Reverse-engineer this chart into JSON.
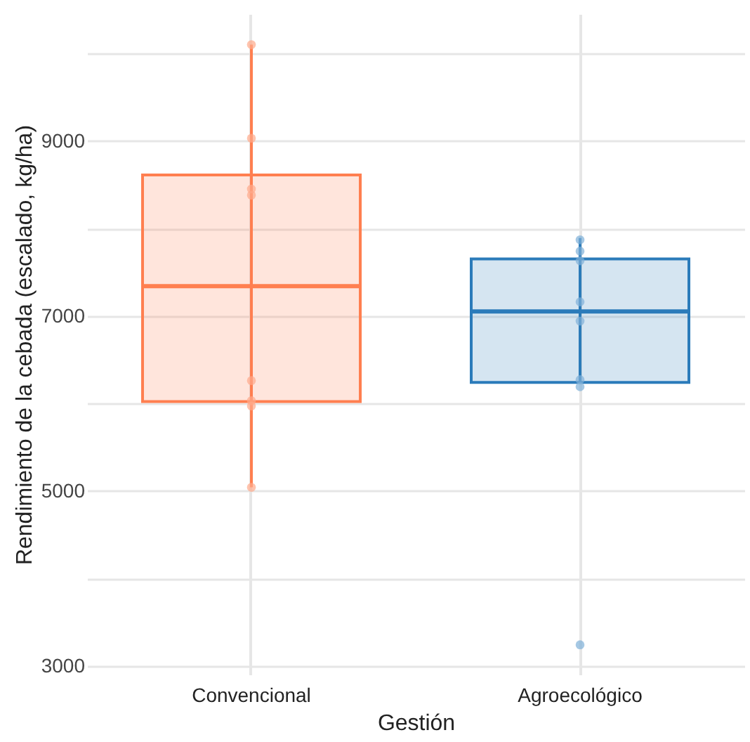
{
  "chart_data": {
    "type": "box",
    "xlabel": "Gestión",
    "ylabel": "Rendimiento de la cebada (escalado, kg/ha)",
    "categories": [
      "Convencional",
      "Agroecológico"
    ],
    "colors": [
      "#ff7f50",
      "#2b7bba"
    ],
    "boxes": [
      {
        "low": 5040,
        "q1": 6020,
        "median": 7340,
        "q3": 8610,
        "high": 10100
      },
      {
        "low": 6240,
        "q1": 6240,
        "median": 7050,
        "q3": 7650,
        "high": 7890,
        "outliers": [
          3240
        ]
      }
    ],
    "series": [
      {
        "type": "scatter",
        "color": "#ffa98a",
        "x": [
          "Convencional",
          "Convencional",
          "Convencional",
          "Convencional",
          "Convencional",
          "Convencional",
          "Convencional",
          "Convencional"
        ],
        "values": [
          10100,
          9030,
          8450,
          8380,
          6260,
          5970,
          6030,
          5040
        ]
      },
      {
        "type": "scatter",
        "color": "#7fb0d8",
        "x": [
          "Agroecológico",
          "Agroecológico",
          "Agroecológico",
          "Agroecológico",
          "Agroecológico",
          "Agroecológico",
          "Agroecológico"
        ],
        "values": [
          7870,
          7740,
          7630,
          7160,
          6940,
          6270,
          6190
        ]
      }
    ],
    "ylim": [
      2900,
      10450
    ],
    "yticks": [
      3000,
      {
        "value": 4000,
        "label": null
      },
      5000,
      {
        "value": 6000,
        "label": null
      },
      7000,
      {
        "value": 8000,
        "label": null
      },
      9000,
      {
        "value": 10000,
        "label": null
      }
    ],
    "grid": true
  }
}
